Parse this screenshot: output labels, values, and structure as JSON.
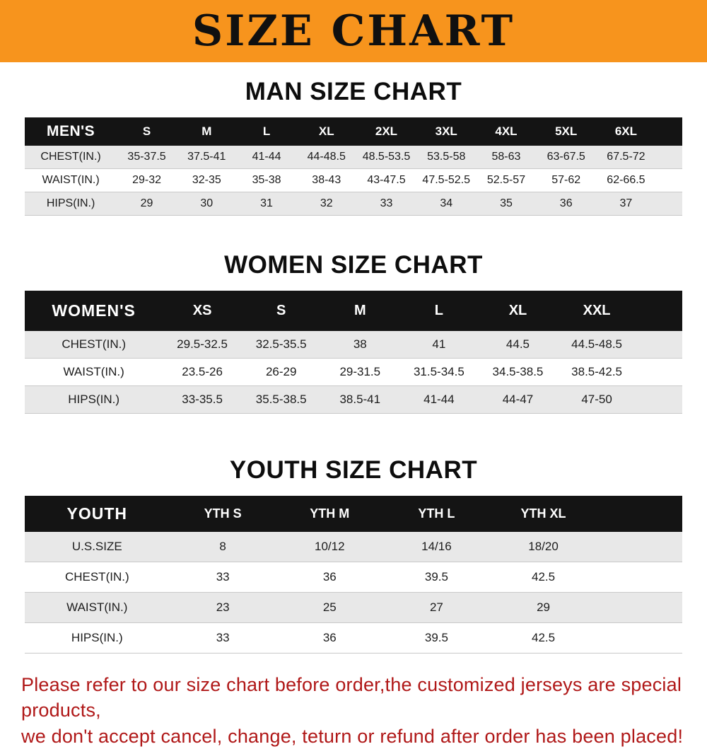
{
  "banner": {
    "title": "SIZE CHART"
  },
  "colors": {
    "banner_bg": "#f7941d",
    "table_header_bg": "#141414",
    "row_stripe": "#e8e8e8",
    "footer_text": "#b01818"
  },
  "chart_data": [
    {
      "type": "table",
      "title": "MAN SIZE CHART",
      "columns": [
        "MEN'S",
        "S",
        "M",
        "L",
        "XL",
        "2XL",
        "3XL",
        "4XL",
        "5XL",
        "6XL"
      ],
      "rows": [
        [
          "CHEST(IN.)",
          "35-37.5",
          "37.5-41",
          "41-44",
          "44-48.5",
          "48.5-53.5",
          "53.5-58",
          "58-63",
          "63-67.5",
          "67.5-72"
        ],
        [
          "WAIST(IN.)",
          "29-32",
          "32-35",
          "35-38",
          "38-43",
          "43-47.5",
          "47.5-52.5",
          "52.5-57",
          "57-62",
          "62-66.5"
        ],
        [
          "HIPS(IN.)",
          "29",
          "30",
          "31",
          "32",
          "33",
          "34",
          "35",
          "36",
          "37"
        ]
      ]
    },
    {
      "type": "table",
      "title": "WOMEN SIZE CHART",
      "columns": [
        "WOMEN'S",
        "XS",
        "S",
        "M",
        "L",
        "XL",
        "XXL"
      ],
      "rows": [
        [
          "CHEST(IN.)",
          "29.5-32.5",
          "32.5-35.5",
          "38",
          "41",
          "44.5",
          "44.5-48.5"
        ],
        [
          "WAIST(IN.)",
          "23.5-26",
          "26-29",
          "29-31.5",
          "31.5-34.5",
          "34.5-38.5",
          "38.5-42.5"
        ],
        [
          "HIPS(IN.)",
          "33-35.5",
          "35.5-38.5",
          "38.5-41",
          "41-44",
          "44-47",
          "47-50"
        ]
      ]
    },
    {
      "type": "table",
      "title": "YOUTH SIZE CHART",
      "columns": [
        "YOUTH",
        "YTH S",
        "YTH M",
        "YTH L",
        "YTH XL"
      ],
      "rows": [
        [
          "U.S.SIZE",
          "8",
          "10/12",
          "14/16",
          "18/20"
        ],
        [
          "CHEST(IN.)",
          "33",
          "36",
          "39.5",
          "42.5"
        ],
        [
          "WAIST(IN.)",
          "23",
          "25",
          "27",
          "29"
        ],
        [
          "HIPS(IN.)",
          "33",
          "36",
          "39.5",
          "42.5"
        ]
      ]
    }
  ],
  "footer": {
    "line1": "Please refer to our size chart before order,the customized jerseys are special products,",
    "line2": "we don't accept cancel, change, teturn or refund after order has been placed!"
  }
}
